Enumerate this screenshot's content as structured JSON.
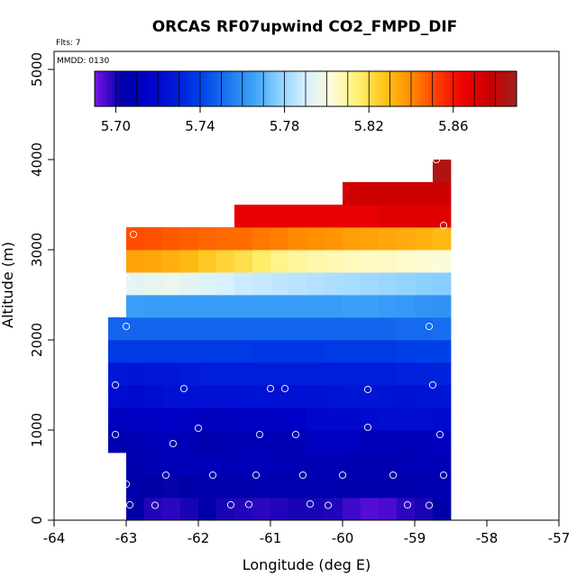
{
  "chart_data": {
    "type": "heatmap",
    "title": "ORCAS RF07upwind CO2_FMPD_DIF",
    "subtitle_flights": "Flts: 7",
    "subtitle_date": "MMDD: 0130",
    "xlabel": "Longitude (deg E)",
    "ylabel": "Altitude (m)",
    "xlim": [
      -64,
      -57
    ],
    "ylim": [
      0,
      5200
    ],
    "x_ticks": [
      -64,
      -63,
      -62,
      -61,
      -60,
      -59,
      -58,
      -57
    ],
    "x_tick_labels": [
      "-64",
      "-63",
      "-62",
      "-61",
      "-60",
      "-59",
      "-58",
      "-57"
    ],
    "y_ticks": [
      0,
      1000,
      2000,
      3000,
      4000,
      5000
    ],
    "y_tick_labels": [
      "0",
      "1000",
      "2000",
      "3000",
      "4000",
      "5000"
    ],
    "colorbar": {
      "min": 5.69,
      "max": 5.89,
      "ticks": [
        5.7,
        5.74,
        5.78,
        5.82,
        5.86
      ],
      "tick_labels": [
        "5.70",
        "5.74",
        "5.78",
        "5.82",
        "5.86"
      ],
      "colors": [
        "#7b13e8",
        "#0000a8",
        "#0000c8",
        "#0018d8",
        "#0040e8",
        "#1a74f0",
        "#3aa0f8",
        "#8ad0ff",
        "#d8f0ff",
        "#fffcd8",
        "#fff070",
        "#ffc418",
        "#ff8c00",
        "#ff3c00",
        "#ee0000",
        "#c80000",
        "#a02020"
      ]
    },
    "cell_grid": {
      "lon_step": 0.25,
      "alt_step": 250
    },
    "rows": [
      {
        "alt": [
          0,
          250
        ],
        "lon": [
          -63.0,
          -58.5
        ],
        "values": [
          5.703,
          5.699,
          5.698,
          5.7,
          5.703,
          5.7,
          5.699,
          5.698,
          5.699,
          5.7,
          5.7,
          5.699,
          5.696,
          5.694,
          5.695,
          5.698,
          5.7,
          5.703
        ]
      },
      {
        "alt": [
          250,
          500
        ],
        "lon": [
          -63.0,
          -58.5
        ],
        "values": [
          5.703,
          5.703,
          5.702,
          5.703,
          5.704,
          5.704,
          5.704,
          5.705,
          5.705,
          5.705,
          5.705,
          5.705,
          5.704,
          5.704,
          5.704,
          5.704,
          5.705,
          5.705
        ]
      },
      {
        "alt": [
          500,
          750
        ],
        "lon": [
          -63.0,
          -58.5
        ],
        "values": [
          5.705,
          5.707,
          5.709,
          5.709,
          5.709,
          5.709,
          5.709,
          5.709,
          5.708,
          5.707,
          5.707,
          5.707,
          5.706,
          5.706,
          5.706,
          5.707,
          5.708,
          5.708
        ]
      },
      {
        "alt": [
          750,
          1000
        ],
        "lon": [
          -63.25,
          -58.5
        ],
        "values": [
          5.705,
          5.707,
          5.709,
          5.71,
          5.708,
          5.705,
          5.706,
          5.708,
          5.708,
          5.707,
          5.708,
          5.712,
          5.713,
          5.712,
          5.71,
          5.709,
          5.71,
          5.71,
          5.711
        ]
      },
      {
        "alt": [
          1000,
          1250
        ],
        "lon": [
          -63.25,
          -58.5
        ],
        "values": [
          5.712,
          5.714,
          5.714,
          5.715,
          5.713,
          5.712,
          5.712,
          5.713,
          5.713,
          5.714,
          5.715,
          5.718,
          5.719,
          5.718,
          5.72,
          5.721,
          5.721,
          5.721,
          5.72
        ]
      },
      {
        "alt": [
          1250,
          1500
        ],
        "lon": [
          -63.25,
          -58.5
        ],
        "values": [
          5.721,
          5.72,
          5.722,
          5.724,
          5.724,
          5.724,
          5.724,
          5.724,
          5.725,
          5.724,
          5.724,
          5.724,
          5.725,
          5.726,
          5.726,
          5.725,
          5.724,
          5.725,
          5.726
        ]
      },
      {
        "alt": [
          1500,
          1750
        ],
        "lon": [
          -63.25,
          -58.5
        ],
        "values": [
          5.727,
          5.726,
          5.727,
          5.727,
          5.728,
          5.729,
          5.729,
          5.729,
          5.729,
          5.729,
          5.729,
          5.729,
          5.729,
          5.729,
          5.729,
          5.729,
          5.73,
          5.73,
          5.731
        ]
      },
      {
        "alt": [
          1750,
          2000
        ],
        "lon": [
          -63.25,
          -58.5
        ],
        "values": [
          5.738,
          5.738,
          5.738,
          5.738,
          5.738,
          5.738,
          5.738,
          5.738,
          5.737,
          5.737,
          5.737,
          5.737,
          5.738,
          5.738,
          5.738,
          5.738,
          5.739,
          5.74,
          5.74
        ]
      },
      {
        "alt": [
          2000,
          2250
        ],
        "lon": [
          -63.25,
          -58.5
        ],
        "values": [
          5.749,
          5.749,
          5.749,
          5.749,
          5.749,
          5.749,
          5.749,
          5.749,
          5.749,
          5.749,
          5.749,
          5.749,
          5.749,
          5.749,
          5.749,
          5.749,
          5.75,
          5.75,
          5.751
        ]
      },
      {
        "alt": [
          2250,
          2500
        ],
        "lon": [
          -63.0,
          -58.5
        ],
        "values": [
          5.765,
          5.764,
          5.764,
          5.764,
          5.764,
          5.764,
          5.764,
          5.764,
          5.764,
          5.764,
          5.764,
          5.764,
          5.765,
          5.765,
          5.764,
          5.763,
          5.762,
          5.761
        ]
      },
      {
        "alt": [
          2500,
          2750
        ],
        "lon": [
          -63.0,
          -58.5
        ],
        "values": [
          5.794,
          5.795,
          5.796,
          5.794,
          5.792,
          5.79,
          5.788,
          5.787,
          5.786,
          5.785,
          5.784,
          5.783,
          5.782,
          5.781,
          5.78,
          5.779,
          5.778,
          5.777
        ]
      },
      {
        "alt": [
          2750,
          3000
        ],
        "lon": [
          -63.0,
          -58.5
        ],
        "values": [
          5.835,
          5.834,
          5.832,
          5.83,
          5.826,
          5.823,
          5.82,
          5.816,
          5.812,
          5.81,
          5.808,
          5.807,
          5.806,
          5.805,
          5.805,
          5.804,
          5.803,
          5.802
        ]
      },
      {
        "alt": [
          3000,
          3250
        ],
        "lon": [
          -63.0,
          -58.5
        ],
        "values": [
          5.85,
          5.849,
          5.848,
          5.847,
          5.846,
          5.845,
          5.845,
          5.843,
          5.842,
          5.84,
          5.839,
          5.838,
          5.836,
          5.835,
          5.834,
          5.833,
          5.832,
          5.83
        ]
      },
      {
        "alt": [
          3250,
          3500
        ],
        "lon": [
          -61.5,
          -58.5
        ],
        "values": [
          5.867,
          5.867,
          5.867,
          5.867,
          5.867,
          5.867,
          5.867,
          5.867,
          5.87,
          5.87,
          5.87,
          5.87
        ]
      },
      {
        "alt": [
          3500,
          3750
        ],
        "lon": [
          -60.0,
          -58.5
        ],
        "values": [
          5.875,
          5.876,
          5.876,
          5.876,
          5.876,
          5.876
        ]
      },
      {
        "alt": [
          3750,
          4000
        ],
        "lon": [
          -58.75,
          -58.5
        ],
        "values": [
          5.885
        ]
      }
    ],
    "sample_points": [
      {
        "lon": -62.95,
        "alt": 170
      },
      {
        "lon": -62.6,
        "alt": 165
      },
      {
        "lon": -61.55,
        "alt": 170
      },
      {
        "lon": -61.3,
        "alt": 175
      },
      {
        "lon": -60.45,
        "alt": 180
      },
      {
        "lon": -60.2,
        "alt": 165
      },
      {
        "lon": -59.1,
        "alt": 170
      },
      {
        "lon": -58.8,
        "alt": 165
      },
      {
        "lon": -63.0,
        "alt": 400
      },
      {
        "lon": -62.45,
        "alt": 500
      },
      {
        "lon": -61.8,
        "alt": 500
      },
      {
        "lon": -61.2,
        "alt": 500
      },
      {
        "lon": -60.55,
        "alt": 500
      },
      {
        "lon": -60.0,
        "alt": 500
      },
      {
        "lon": -59.3,
        "alt": 500
      },
      {
        "lon": -58.6,
        "alt": 500
      },
      {
        "lon": -62.35,
        "alt": 850
      },
      {
        "lon": -63.15,
        "alt": 950
      },
      {
        "lon": -62.0,
        "alt": 1020
      },
      {
        "lon": -61.15,
        "alt": 950
      },
      {
        "lon": -60.65,
        "alt": 950
      },
      {
        "lon": -59.65,
        "alt": 1030
      },
      {
        "lon": -58.65,
        "alt": 950
      },
      {
        "lon": -63.15,
        "alt": 1500
      },
      {
        "lon": -62.2,
        "alt": 1460
      },
      {
        "lon": -61.0,
        "alt": 1460
      },
      {
        "lon": -60.8,
        "alt": 1460
      },
      {
        "lon": -59.65,
        "alt": 1450
      },
      {
        "lon": -58.75,
        "alt": 1500
      },
      {
        "lon": -63.0,
        "alt": 2150
      },
      {
        "lon": -58.8,
        "alt": 2150
      },
      {
        "lon": -63.0,
        "alt": 2680
      },
      {
        "lon": -62.9,
        "alt": 3170
      },
      {
        "lon": -58.6,
        "alt": 3270
      },
      {
        "lon": -58.7,
        "alt": 4000
      }
    ]
  }
}
